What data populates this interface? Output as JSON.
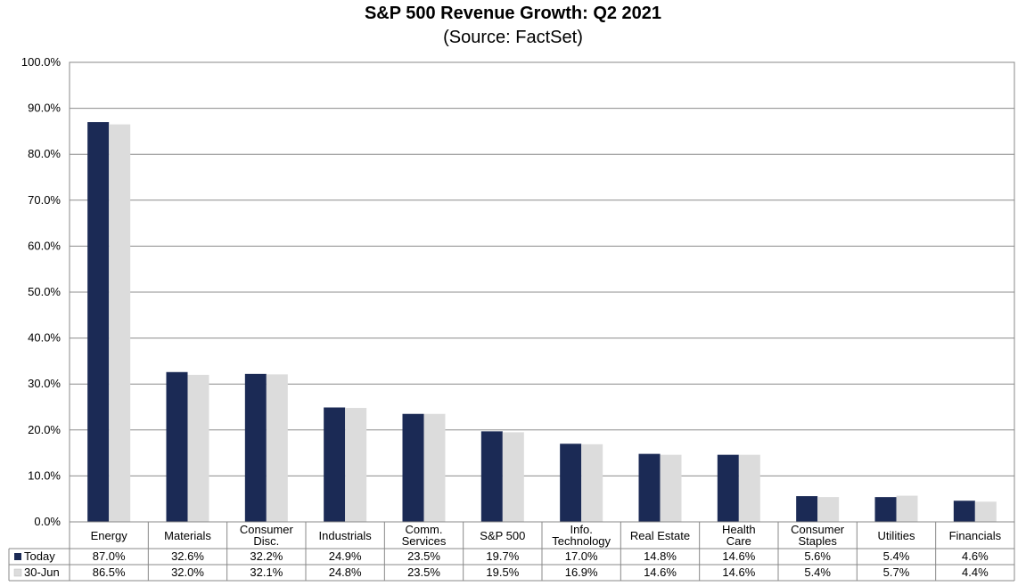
{
  "chart_data": {
    "type": "bar",
    "title": "S&P 500 Revenue Growth: Q2 2021",
    "subtitle": "(Source: FactSet)",
    "categories": [
      [
        "Energy"
      ],
      [
        "Materials"
      ],
      [
        "Consumer",
        "Disc."
      ],
      [
        "Industrials"
      ],
      [
        "Comm.",
        "Services"
      ],
      [
        "S&P 500"
      ],
      [
        "Info.",
        "Technology"
      ],
      [
        "Real Estate"
      ],
      [
        "Health",
        "Care"
      ],
      [
        "Consumer",
        "Staples"
      ],
      [
        "Utilities"
      ],
      [
        "Financials"
      ]
    ],
    "series": [
      {
        "name": "Today",
        "color": "#1b2a55",
        "values": [
          87.0,
          32.6,
          32.2,
          24.9,
          23.5,
          19.7,
          17.0,
          14.8,
          14.6,
          5.6,
          5.4,
          4.6
        ],
        "labels": [
          "87.0%",
          "32.6%",
          "32.2%",
          "24.9%",
          "23.5%",
          "19.7%",
          "17.0%",
          "14.8%",
          "14.6%",
          "5.6%",
          "5.4%",
          "4.6%"
        ]
      },
      {
        "name": "30-Jun",
        "color": "#dcdcdc",
        "values": [
          86.5,
          32.0,
          32.1,
          24.8,
          23.5,
          19.5,
          16.9,
          14.6,
          14.6,
          5.4,
          5.7,
          4.4
        ],
        "labels": [
          "86.5%",
          "32.0%",
          "32.1%",
          "24.8%",
          "23.5%",
          "19.5%",
          "16.9%",
          "14.6%",
          "14.6%",
          "5.4%",
          "5.7%",
          "4.4%"
        ]
      }
    ],
    "ylim": [
      0,
      100
    ],
    "yticks": [
      "0.0%",
      "10.0%",
      "20.0%",
      "30.0%",
      "40.0%",
      "50.0%",
      "60.0%",
      "70.0%",
      "80.0%",
      "90.0%",
      "100.0%"
    ],
    "grid": true,
    "legend": "data-table"
  }
}
